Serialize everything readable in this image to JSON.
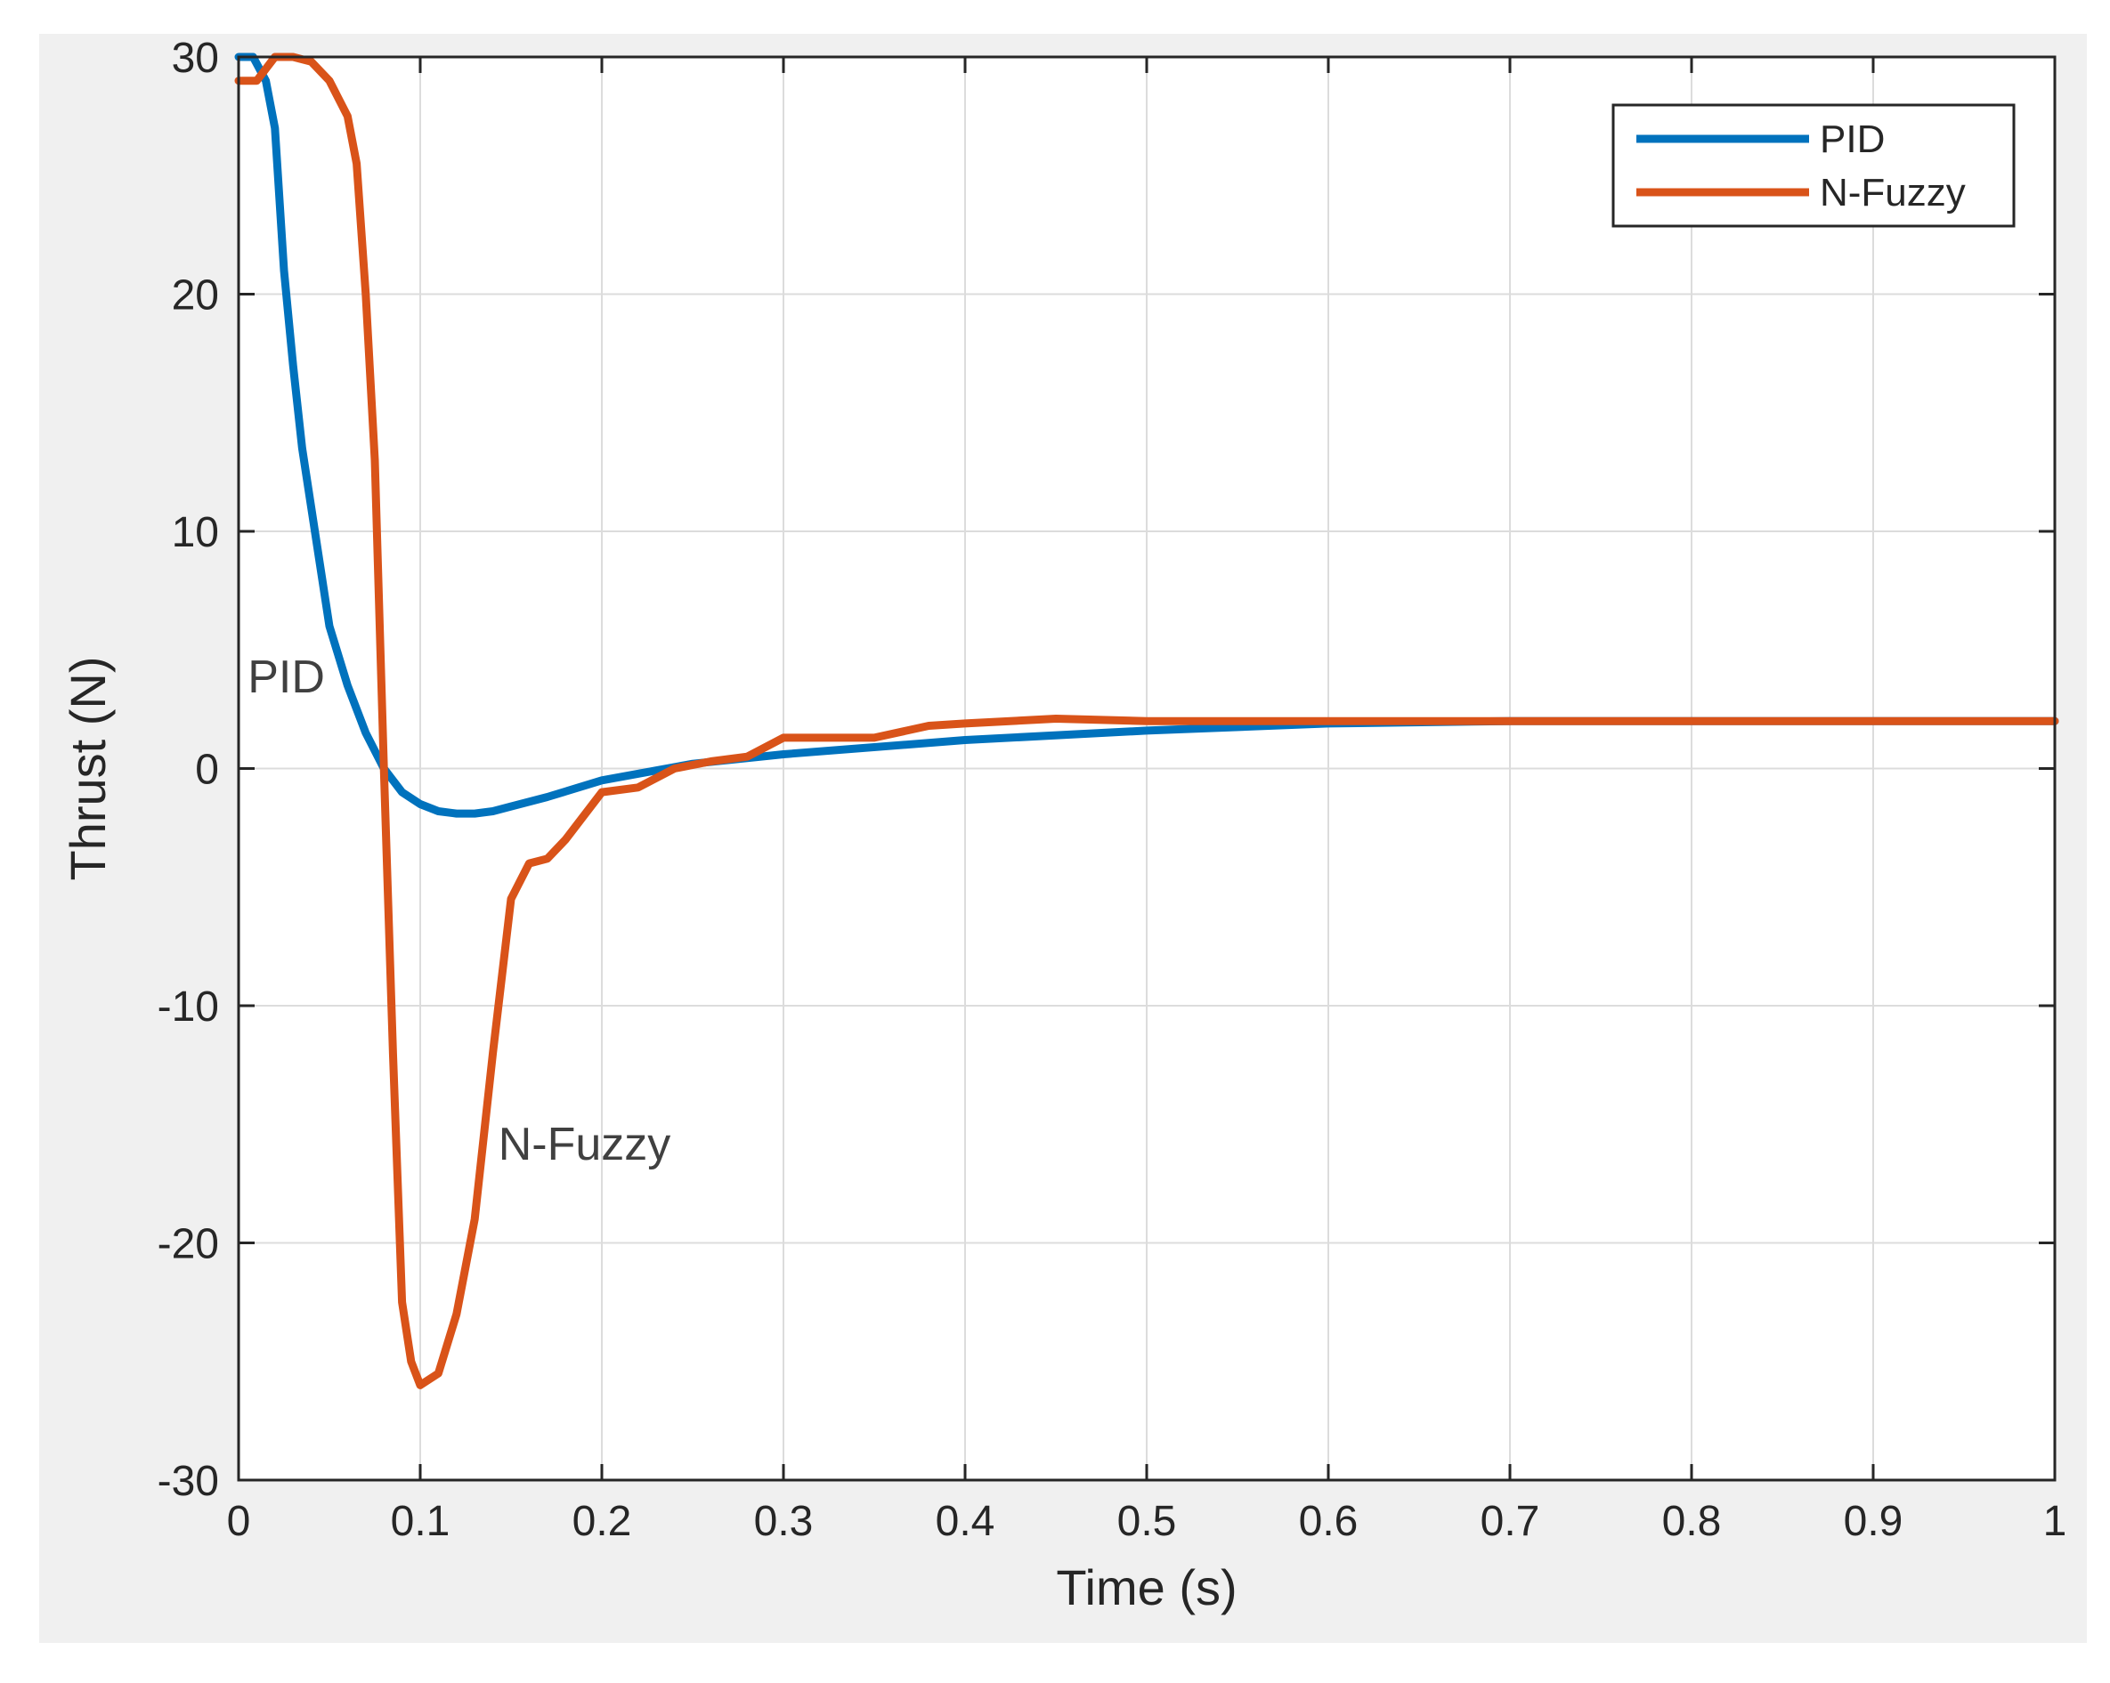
{
  "chart_data": {
    "type": "line",
    "title": "",
    "xlabel": "Time (s)",
    "ylabel": "Thrust (N)",
    "xlim": [
      0,
      1
    ],
    "ylim": [
      -30,
      30
    ],
    "xticks": [
      0,
      0.1,
      0.2,
      0.3,
      0.4,
      0.5,
      0.6,
      0.7,
      0.8,
      0.9,
      1
    ],
    "xtick_labels": [
      "0",
      "0.1",
      "0.2",
      "0.3",
      "0.4",
      "0.5",
      "0.6",
      "0.7",
      "0.8",
      "0.9",
      "1"
    ],
    "yticks": [
      -30,
      -20,
      -10,
      0,
      10,
      20,
      30
    ],
    "ytick_labels": [
      "-30",
      "-20",
      "-10",
      "0",
      "10",
      "20",
      "30"
    ],
    "grid": true,
    "legend_position": "top-right",
    "series": [
      {
        "name": "PID",
        "color": "#0072BD",
        "x": [
          0,
          0.008,
          0.015,
          0.02,
          0.025,
          0.03,
          0.035,
          0.04,
          0.05,
          0.06,
          0.07,
          0.08,
          0.09,
          0.1,
          0.11,
          0.12,
          0.13,
          0.14,
          0.15,
          0.17,
          0.2,
          0.25,
          0.3,
          0.4,
          0.5,
          0.6,
          0.7,
          0.8,
          0.9,
          1.0
        ],
        "y": [
          30,
          30,
          29,
          27,
          21,
          17,
          13.5,
          11,
          6,
          3.5,
          1.5,
          0,
          -1,
          -1.5,
          -1.8,
          -1.9,
          -1.9,
          -1.8,
          -1.6,
          -1.2,
          -0.5,
          0.2,
          0.6,
          1.2,
          1.6,
          1.9,
          2.0,
          2.0,
          2.0,
          2.0
        ]
      },
      {
        "name": "N-Fuzzy",
        "color": "#D95319",
        "x": [
          0,
          0.01,
          0.015,
          0.02,
          0.03,
          0.04,
          0.05,
          0.06,
          0.065,
          0.07,
          0.075,
          0.08,
          0.085,
          0.09,
          0.095,
          0.1,
          0.11,
          0.12,
          0.13,
          0.14,
          0.15,
          0.16,
          0.17,
          0.18,
          0.2,
          0.22,
          0.24,
          0.26,
          0.28,
          0.3,
          0.32,
          0.35,
          0.38,
          0.4,
          0.45,
          0.5,
          0.6,
          0.7,
          0.8,
          0.9,
          1.0
        ],
        "y": [
          29,
          29,
          29.5,
          30,
          30,
          29.8,
          29,
          27.5,
          25.5,
          20,
          13,
          0,
          -12,
          -22.5,
          -25,
          -26,
          -25.5,
          -23,
          -19,
          -12,
          -5.5,
          -4,
          -3.8,
          -3,
          -1,
          -0.8,
          0,
          0.3,
          0.5,
          1.3,
          1.3,
          1.3,
          1.8,
          1.9,
          2.1,
          2.0,
          2.0,
          2.0,
          2.0,
          2.0,
          2.0
        ]
      }
    ],
    "annotations": [
      {
        "text": "PID",
        "x": 0.005,
        "y": 3.2
      },
      {
        "text": "N-Fuzzy",
        "x": 0.143,
        "y": -16.5
      }
    ]
  }
}
